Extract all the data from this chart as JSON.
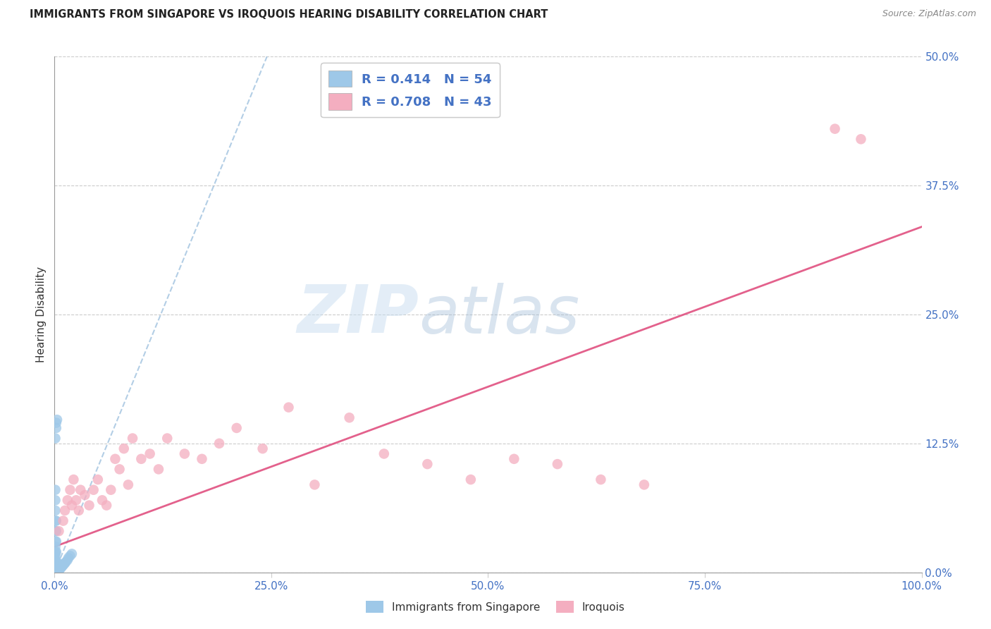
{
  "title": "IMMIGRANTS FROM SINGAPORE VS IROQUOIS HEARING DISABILITY CORRELATION CHART",
  "source": "Source: ZipAtlas.com",
  "ylabel": "Hearing Disability",
  "xlim": [
    0.0,
    1.0
  ],
  "ylim": [
    0.0,
    0.5
  ],
  "blue_color": "#9ec8e8",
  "pink_color": "#f4aec0",
  "blue_line_color": "#8ab4d8",
  "pink_line_color": "#e05080",
  "legend_r1": "R = 0.414   N = 54",
  "legend_r2": "R = 0.708   N = 43",
  "watermark_zip": "ZIP",
  "watermark_atlas": "atlas",
  "source_text": "Source: ZipAtlas.com",
  "sg_x": [
    0.001,
    0.001,
    0.001,
    0.001,
    0.001,
    0.001,
    0.001,
    0.001,
    0.001,
    0.001,
    0.001,
    0.001,
    0.001,
    0.001,
    0.001,
    0.001,
    0.001,
    0.001,
    0.001,
    0.001,
    0.002,
    0.002,
    0.002,
    0.002,
    0.002,
    0.002,
    0.002,
    0.002,
    0.002,
    0.003,
    0.003,
    0.003,
    0.003,
    0.004,
    0.004,
    0.005,
    0.006,
    0.007,
    0.008,
    0.009,
    0.01,
    0.011,
    0.012,
    0.013,
    0.015,
    0.016,
    0.018,
    0.02,
    0.001,
    0.002,
    0.002,
    0.003,
    0.001,
    0.001
  ],
  "sg_y": [
    0.001,
    0.002,
    0.003,
    0.004,
    0.005,
    0.006,
    0.007,
    0.008,
    0.01,
    0.012,
    0.015,
    0.018,
    0.02,
    0.025,
    0.03,
    0.04,
    0.05,
    0.06,
    0.07,
    0.08,
    0.001,
    0.002,
    0.003,
    0.005,
    0.01,
    0.02,
    0.03,
    0.04,
    0.05,
    0.001,
    0.002,
    0.005,
    0.01,
    0.001,
    0.003,
    0.002,
    0.003,
    0.004,
    0.005,
    0.006,
    0.007,
    0.008,
    0.009,
    0.01,
    0.012,
    0.014,
    0.016,
    0.018,
    0.13,
    0.14,
    0.145,
    0.148,
    0.0,
    0.001
  ],
  "iq_x": [
    0.005,
    0.01,
    0.012,
    0.015,
    0.018,
    0.02,
    0.022,
    0.025,
    0.028,
    0.03,
    0.035,
    0.04,
    0.045,
    0.05,
    0.055,
    0.06,
    0.065,
    0.07,
    0.075,
    0.08,
    0.085,
    0.09,
    0.1,
    0.11,
    0.12,
    0.13,
    0.15,
    0.17,
    0.19,
    0.21,
    0.24,
    0.27,
    0.3,
    0.34,
    0.38,
    0.43,
    0.48,
    0.53,
    0.58,
    0.63,
    0.68,
    0.9,
    0.93
  ],
  "iq_y": [
    0.04,
    0.05,
    0.06,
    0.07,
    0.08,
    0.065,
    0.09,
    0.07,
    0.06,
    0.08,
    0.075,
    0.065,
    0.08,
    0.09,
    0.07,
    0.065,
    0.08,
    0.11,
    0.1,
    0.12,
    0.085,
    0.13,
    0.11,
    0.115,
    0.1,
    0.13,
    0.115,
    0.11,
    0.125,
    0.14,
    0.12,
    0.16,
    0.085,
    0.15,
    0.115,
    0.105,
    0.09,
    0.11,
    0.105,
    0.09,
    0.085,
    0.43,
    0.42
  ],
  "sg_trend_x": [
    0.0,
    0.245
  ],
  "sg_trend_y": [
    0.0,
    0.5
  ],
  "iq_trend_x": [
    0.0,
    1.0
  ],
  "iq_trend_y": [
    0.025,
    0.335
  ]
}
